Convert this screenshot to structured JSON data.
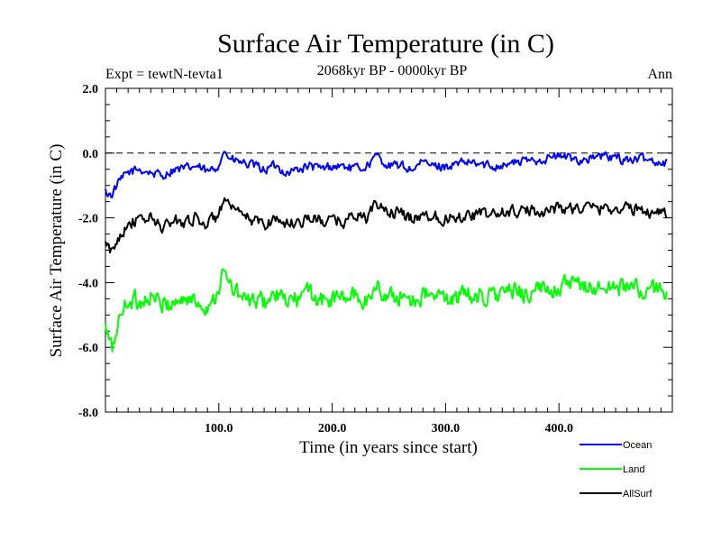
{
  "chart_data": {
    "type": "line",
    "title": "Surface Air Temperature (in C)",
    "subtitle": "2068kyr BP - 0000kyr BP",
    "expt_label": "Expt = tewtN-tevta1",
    "season_label": "Ann",
    "xlabel": "Time (in years since start)",
    "ylabel": "Surface Air Temperature (in C)",
    "xlim": [
      0,
      500
    ],
    "ylim": [
      -8,
      2
    ],
    "x_ticks": [
      100,
      200,
      300,
      400
    ],
    "x_tick_labels": [
      "100.0",
      "200.0",
      "300.0",
      "400.0"
    ],
    "y_ticks": [
      2,
      0,
      -2,
      -4,
      -6,
      -8
    ],
    "y_tick_labels": [
      "2.0",
      "0.0",
      "-2.0",
      "-4.0",
      "-6.0",
      "-8.0"
    ],
    "reference_line": 0,
    "legend_position": "bottom-right",
    "series": [
      {
        "name": "Ocean",
        "color": "#0000ff",
        "x": [
          0,
          5,
          10,
          20,
          30,
          40,
          50,
          60,
          70,
          80,
          90,
          97,
          100,
          103,
          106,
          110,
          120,
          130,
          140,
          150,
          160,
          170,
          180,
          190,
          200,
          210,
          220,
          230,
          240,
          250,
          260,
          270,
          280,
          290,
          300,
          320,
          340,
          360,
          380,
          400,
          420,
          440,
          460,
          480,
          495
        ],
        "values": [
          -1.2,
          -1.3,
          -1.0,
          -0.6,
          -0.5,
          -0.6,
          -0.7,
          -0.5,
          -0.5,
          -0.4,
          -0.6,
          -0.5,
          -0.3,
          0.0,
          0.05,
          -0.2,
          -0.3,
          -0.4,
          -0.5,
          -0.4,
          -0.6,
          -0.5,
          -0.4,
          -0.5,
          -0.4,
          -0.4,
          -0.5,
          -0.4,
          -0.1,
          -0.4,
          -0.4,
          -0.5,
          -0.3,
          -0.4,
          -0.4,
          -0.3,
          -0.4,
          -0.3,
          -0.2,
          -0.1,
          -0.2,
          -0.1,
          -0.2,
          -0.2,
          -0.3
        ]
      },
      {
        "name": "Land",
        "color": "#00ff00",
        "x": [
          0,
          3,
          6,
          10,
          15,
          20,
          30,
          40,
          50,
          60,
          70,
          80,
          90,
          97,
          100,
          104,
          108,
          115,
          125,
          140,
          150,
          160,
          170,
          180,
          190,
          200,
          210,
          220,
          230,
          240,
          250,
          260,
          270,
          280,
          300,
          320,
          340,
          360,
          380,
          400,
          420,
          440,
          460,
          480,
          495
        ],
        "values": [
          -5.4,
          -5.8,
          -6.1,
          -5.4,
          -4.9,
          -4.5,
          -4.6,
          -4.4,
          -4.7,
          -4.6,
          -4.5,
          -4.6,
          -4.7,
          -4.4,
          -4.1,
          -3.7,
          -4.0,
          -4.3,
          -4.6,
          -4.6,
          -4.4,
          -4.6,
          -4.5,
          -4.3,
          -4.6,
          -4.5,
          -4.5,
          -4.4,
          -4.6,
          -4.1,
          -4.5,
          -4.4,
          -4.5,
          -4.4,
          -4.5,
          -4.4,
          -4.4,
          -4.3,
          -4.3,
          -4.1,
          -4.1,
          -4.2,
          -4.1,
          -4.3,
          -4.2
        ]
      },
      {
        "name": "AllSurf",
        "color": "#000000",
        "x": [
          0,
          3,
          6,
          10,
          15,
          20,
          30,
          40,
          50,
          60,
          70,
          80,
          90,
          97,
          100,
          104,
          108,
          115,
          125,
          140,
          150,
          160,
          170,
          180,
          190,
          200,
          210,
          220,
          230,
          240,
          250,
          260,
          270,
          280,
          300,
          320,
          340,
          360,
          380,
          400,
          420,
          440,
          460,
          480,
          495
        ],
        "values": [
          -2.8,
          -3.0,
          -3.1,
          -2.7,
          -2.4,
          -2.1,
          -2.1,
          -2.0,
          -2.3,
          -2.1,
          -2.1,
          -2.0,
          -2.2,
          -2.0,
          -1.8,
          -1.5,
          -1.6,
          -1.9,
          -2.0,
          -2.2,
          -2.0,
          -2.2,
          -2.1,
          -2.0,
          -2.1,
          -2.1,
          -2.1,
          -1.9,
          -2.0,
          -1.6,
          -1.8,
          -1.9,
          -2.0,
          -1.9,
          -2.0,
          -1.9,
          -1.9,
          -1.8,
          -1.8,
          -1.7,
          -1.7,
          -1.7,
          -1.7,
          -1.8,
          -1.8
        ]
      }
    ]
  }
}
